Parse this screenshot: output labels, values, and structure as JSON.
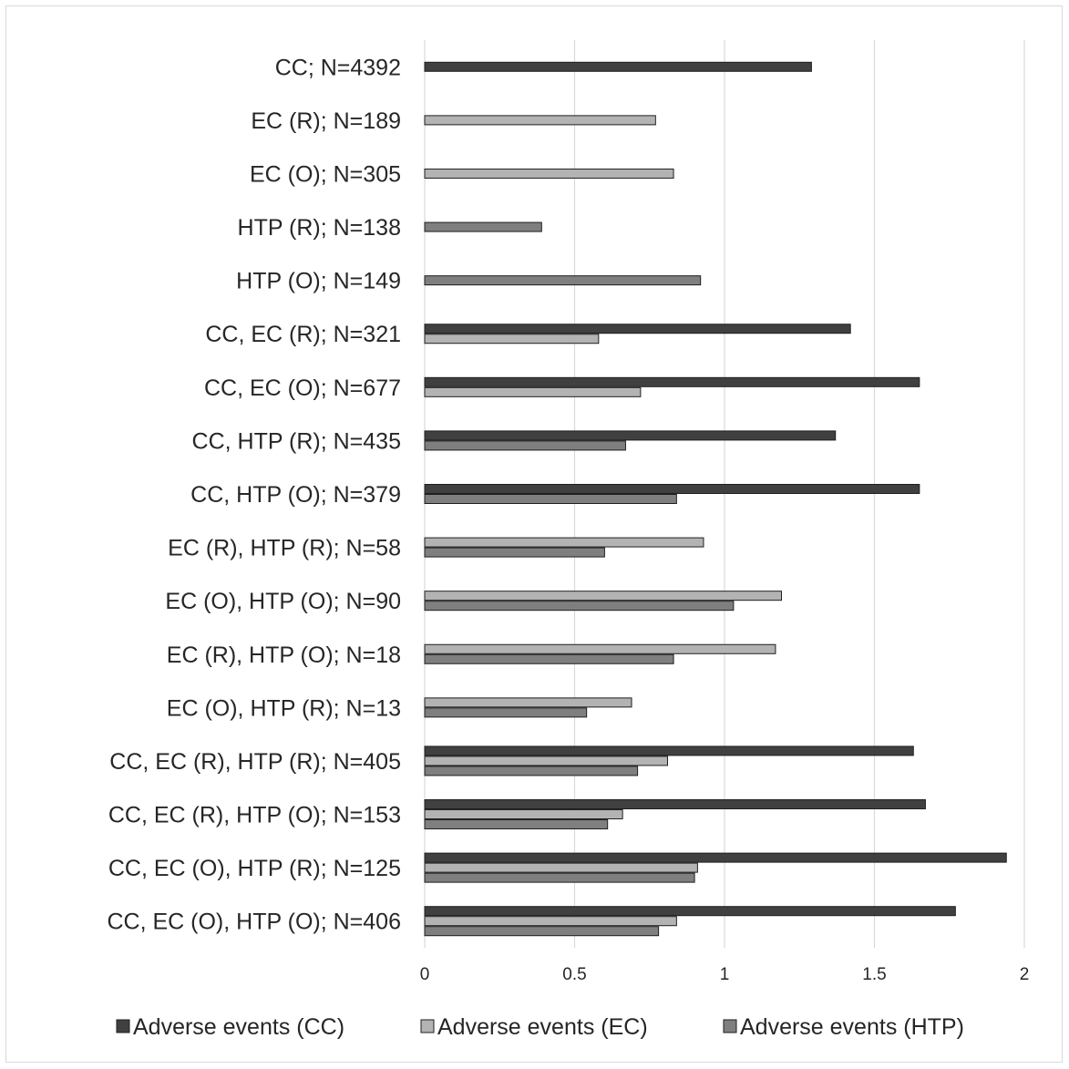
{
  "chart_data": {
    "type": "bar",
    "orientation": "horizontal",
    "categories": [
      "CC; N=4392",
      "EC (R); N=189",
      "EC (O); N=305",
      "HTP (R); N=138",
      "HTP (O); N=149",
      "CC, EC (R); N=321",
      "CC, EC (O); N=677",
      "CC, HTP (R); N=435",
      "CC, HTP (O); N=379",
      "EC (R), HTP (R); N=58",
      "EC (O), HTP (O); N=90",
      "EC (R), HTP (O); N=18",
      "EC (O), HTP (R); N=13",
      "CC, EC (R), HTP (R); N=405",
      "CC, EC (R), HTP (O); N=153",
      "CC, EC (O), HTP (R); N=125",
      "CC, EC (O), HTP (O); N=406"
    ],
    "series": [
      {
        "name": "Adverse events (CC)",
        "color": "#404040",
        "values": [
          1.29,
          null,
          null,
          null,
          null,
          1.42,
          1.65,
          1.37,
          1.65,
          null,
          null,
          null,
          null,
          1.63,
          1.67,
          1.94,
          1.77
        ]
      },
      {
        "name": "Adverse events (EC)",
        "color": "#b3b3b3",
        "values": [
          null,
          0.77,
          0.83,
          null,
          null,
          0.58,
          0.72,
          null,
          null,
          0.93,
          1.19,
          1.17,
          0.69,
          0.81,
          0.66,
          0.91,
          0.84
        ]
      },
      {
        "name": "Adverse events (HTP)",
        "color": "#7f7f7f",
        "values": [
          null,
          null,
          null,
          0.39,
          0.92,
          null,
          null,
          0.67,
          0.84,
          0.6,
          1.03,
          0.83,
          0.54,
          0.71,
          0.61,
          0.9,
          0.78
        ]
      }
    ],
    "x_ticks": [
      "0",
      "0.5",
      "1",
      "1.5",
      "2"
    ],
    "xlim": [
      0,
      2
    ],
    "grid": "vertical",
    "legend": "bottom",
    "title": "",
    "xlabel": "",
    "ylabel": ""
  }
}
